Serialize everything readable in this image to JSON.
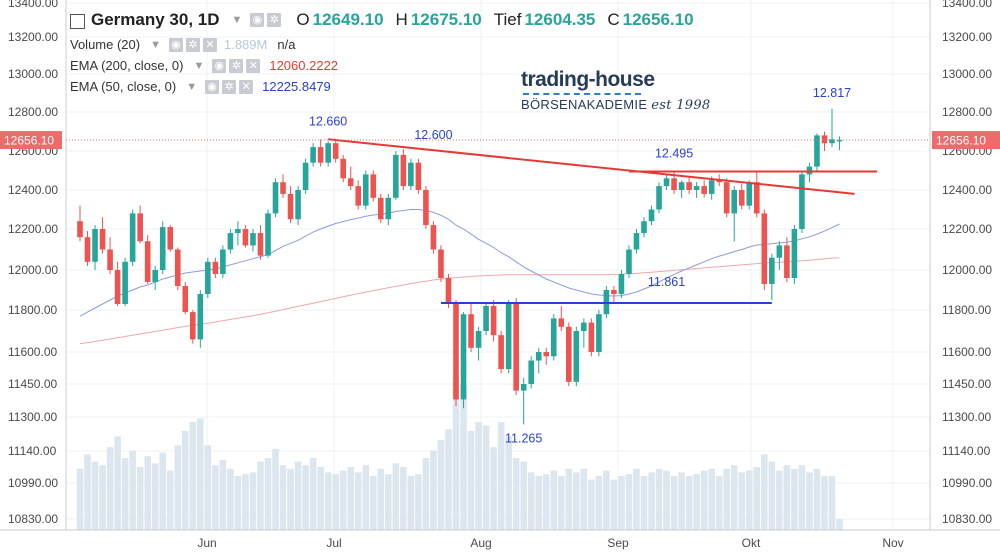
{
  "header": {
    "symbol": "Germany 30, 1D",
    "open_label": "O",
    "open": "12649.10",
    "high_label": "H",
    "high": "12675.10",
    "low_label": "Tief",
    "low": "12604.35",
    "close_label": "C",
    "close": "12656.10",
    "value_color": "#26a69a"
  },
  "indicators": [
    {
      "name": "Volume (20)",
      "value": "1.889M",
      "extra": "n/a",
      "value_color": "#b8c8d8"
    },
    {
      "name": "EMA (200, close, 0)",
      "value": "12060.2222",
      "value_color": "#e53935"
    },
    {
      "name": "EMA (50, close, 0)",
      "value": "12225.8479",
      "value_color": "#2940d0"
    }
  ],
  "logo": {
    "line1": "trading-house",
    "line2": "BÖRSENAKADEMIE",
    "line3": "est 1998"
  },
  "price_tag": "12656.10",
  "chart_data": {
    "type": "candlestick",
    "y_axis": {
      "ticks": [
        10830,
        10990,
        11140,
        11300,
        11450,
        11600,
        11800,
        12000,
        12200,
        12400,
        12600,
        12800,
        13000,
        13200,
        13400
      ],
      "tick_labels": [
        "10830.00",
        "10990.00",
        "11140.00",
        "11300.00",
        "11450.00",
        "11600.00",
        "11800.00",
        "12000.00",
        "12200.00",
        "12400.00",
        "12600.00",
        "12800.00",
        "13000.00",
        "13200.00",
        "13400.00"
      ]
    },
    "x_axis": {
      "labels": [
        "Jun",
        "Jul",
        "Aug",
        "Sep",
        "Okt",
        "Nov"
      ]
    },
    "grid": true,
    "up_color": "#26a69a",
    "down_color": "#ef5350",
    "volume_color": "#dce6ef",
    "candles": [
      [
        12240,
        12320,
        12140,
        12160,
        0.34
      ],
      [
        12160,
        12190,
        12020,
        12040,
        0.42
      ],
      [
        12040,
        12220,
        12000,
        12200,
        0.38
      ],
      [
        12200,
        12260,
        12080,
        12100,
        0.36
      ],
      [
        12100,
        12160,
        11980,
        12000,
        0.46
      ],
      [
        12000,
        12040,
        11820,
        11830,
        0.52
      ],
      [
        11830,
        12060,
        11820,
        12040,
        0.4
      ],
      [
        12040,
        12300,
        12020,
        12280,
        0.44
      ],
      [
        12280,
        12320,
        12130,
        12140,
        0.35
      ],
      [
        12140,
        12170,
        11930,
        11940,
        0.41
      ],
      [
        11940,
        12020,
        11900,
        12000,
        0.37
      ],
      [
        12000,
        12240,
        11980,
        12210,
        0.43
      ],
      [
        12210,
        12220,
        12090,
        12100,
        0.33
      ],
      [
        12100,
        12110,
        11900,
        11920,
        0.47
      ],
      [
        11920,
        11940,
        11780,
        11790,
        0.55
      ],
      [
        11790,
        11800,
        11640,
        11660,
        0.6
      ],
      [
        11660,
        11900,
        11620,
        11880,
        0.62
      ],
      [
        11880,
        12060,
        11860,
        12040,
        0.47
      ],
      [
        12040,
        12060,
        11960,
        11980,
        0.36
      ],
      [
        11980,
        12120,
        11960,
        12100,
        0.39
      ],
      [
        12100,
        12200,
        12080,
        12180,
        0.34
      ],
      [
        12180,
        12240,
        12120,
        12200,
        0.3
      ],
      [
        12200,
        12220,
        12110,
        12120,
        0.31
      ],
      [
        12120,
        12200,
        12090,
        12180,
        0.32
      ],
      [
        12180,
        12220,
        12050,
        12070,
        0.38
      ],
      [
        12070,
        12300,
        12060,
        12280,
        0.4
      ],
      [
        12280,
        12460,
        12260,
        12440,
        0.45
      ],
      [
        12440,
        12480,
        12360,
        12380,
        0.36
      ],
      [
        12380,
        12420,
        12230,
        12250,
        0.34
      ],
      [
        12250,
        12420,
        12220,
        12400,
        0.38
      ],
      [
        12400,
        12560,
        12380,
        12540,
        0.36
      ],
      [
        12540,
        12640,
        12520,
        12620,
        0.4
      ],
      [
        12620,
        12660,
        12520,
        12540,
        0.35
      ],
      [
        12540,
        12650,
        12520,
        12640,
        0.32
      ],
      [
        12640,
        12650,
        12540,
        12560,
        0.31
      ],
      [
        12560,
        12580,
        12440,
        12460,
        0.33
      ],
      [
        12460,
        12520,
        12400,
        12420,
        0.35
      ],
      [
        12420,
        12450,
        12300,
        12320,
        0.32
      ],
      [
        12320,
        12500,
        12300,
        12480,
        0.36
      ],
      [
        12480,
        12500,
        12340,
        12360,
        0.3
      ],
      [
        12360,
        12380,
        12230,
        12250,
        0.34
      ],
      [
        12250,
        12380,
        12220,
        12360,
        0.31
      ],
      [
        12360,
        12600,
        12350,
        12580,
        0.37
      ],
      [
        12580,
        12610,
        12400,
        12420,
        0.35
      ],
      [
        12420,
        12560,
        12400,
        12540,
        0.3
      ],
      [
        12540,
        12560,
        12380,
        12400,
        0.31
      ],
      [
        12400,
        12420,
        12200,
        12220,
        0.4
      ],
      [
        12220,
        12240,
        12080,
        12100,
        0.44
      ],
      [
        12100,
        12120,
        11940,
        11960,
        0.5
      ],
      [
        11960,
        11980,
        11810,
        11830,
        0.56
      ],
      [
        11830,
        11850,
        11350,
        11380,
        0.86
      ],
      [
        11380,
        11790,
        11340,
        11780,
        0.8
      ],
      [
        11780,
        11830,
        11600,
        11620,
        0.55
      ],
      [
        11620,
        11720,
        11560,
        11700,
        0.6
      ],
      [
        11700,
        11840,
        11680,
        11820,
        0.58
      ],
      [
        11820,
        11850,
        11650,
        11680,
        0.46
      ],
      [
        11680,
        11700,
        11500,
        11520,
        0.6
      ],
      [
        11520,
        11850,
        11500,
        11830,
        0.52
      ],
      [
        11830,
        11860,
        11400,
        11420,
        0.4
      ],
      [
        11420,
        11480,
        11265,
        11450,
        0.38
      ],
      [
        11450,
        11580,
        11430,
        11560,
        0.32
      ],
      [
        11560,
        11620,
        11500,
        11600,
        0.3
      ],
      [
        11600,
        11620,
        11540,
        11580,
        0.31
      ],
      [
        11580,
        11780,
        11560,
        11760,
        0.33
      ],
      [
        11760,
        11820,
        11700,
        11720,
        0.3
      ],
      [
        11720,
        11740,
        11440,
        11460,
        0.34
      ],
      [
        11460,
        11720,
        11440,
        11700,
        0.32
      ],
      [
        11700,
        11760,
        11620,
        11740,
        0.34
      ],
      [
        11740,
        11760,
        11580,
        11600,
        0.28
      ],
      [
        11600,
        11800,
        11580,
        11780,
        0.3
      ],
      [
        11780,
        11920,
        11760,
        11900,
        0.33
      ],
      [
        11900,
        11920,
        11840,
        11880,
        0.28
      ],
      [
        11880,
        12000,
        11860,
        11980,
        0.3
      ],
      [
        11980,
        12120,
        11960,
        12100,
        0.31
      ],
      [
        12100,
        12200,
        12080,
        12180,
        0.34
      ],
      [
        12180,
        12260,
        12160,
        12240,
        0.3
      ],
      [
        12240,
        12320,
        12220,
        12300,
        0.32
      ],
      [
        12300,
        12440,
        12280,
        12420,
        0.34
      ],
      [
        12420,
        12480,
        12400,
        12460,
        0.33
      ],
      [
        12460,
        12495,
        12380,
        12400,
        0.3
      ],
      [
        12400,
        12450,
        12360,
        12440,
        0.32
      ],
      [
        12440,
        12470,
        12380,
        12400,
        0.3
      ],
      [
        12400,
        12440,
        12360,
        12420,
        0.31
      ],
      [
        12420,
        12450,
        12360,
        12380,
        0.33
      ],
      [
        12380,
        12470,
        12350,
        12450,
        0.34
      ],
      [
        12450,
        12480,
        12420,
        12440,
        0.3
      ],
      [
        12440,
        12460,
        12260,
        12280,
        0.34
      ],
      [
        12280,
        12420,
        12140,
        12400,
        0.36
      ],
      [
        12400,
        12430,
        12300,
        12320,
        0.32
      ],
      [
        12320,
        12450,
        12300,
        12440,
        0.33
      ],
      [
        12440,
        12490,
        12260,
        12280,
        0.35
      ],
      [
        12280,
        12300,
        11900,
        11930,
        0.42
      ],
      [
        11930,
        12080,
        11850,
        12060,
        0.38
      ],
      [
        12060,
        12140,
        12000,
        12120,
        0.33
      ],
      [
        12120,
        12160,
        11940,
        11960,
        0.36
      ],
      [
        11960,
        12220,
        11930,
        12200,
        0.34
      ],
      [
        12200,
        12500,
        12180,
        12480,
        0.36
      ],
      [
        12480,
        12540,
        12440,
        12520,
        0.32
      ],
      [
        12520,
        12690,
        12500,
        12680,
        0.34
      ],
      [
        12680,
        12700,
        12600,
        12640,
        0.3
      ],
      [
        12640,
        12817,
        12620,
        12660,
        0.3
      ],
      [
        12649.1,
        12675.1,
        12604.35,
        12656.1,
        0.06
      ]
    ],
    "ema50": [
      11770,
      11790,
      11810,
      11830,
      11850,
      11870,
      11885,
      11900,
      11915,
      11925,
      11940,
      11955,
      11965,
      11975,
      11985,
      11990,
      11995,
      12000,
      12005,
      12015,
      12025,
      12035,
      12045,
      12055,
      12065,
      12075,
      12095,
      12115,
      12130,
      12145,
      12165,
      12185,
      12200,
      12215,
      12228,
      12238,
      12248,
      12256,
      12265,
      12272,
      12276,
      12280,
      12290,
      12295,
      12300,
      12300,
      12295,
      12285,
      12270,
      12250,
      12220,
      12200,
      12175,
      12150,
      12130,
      12110,
      12085,
      12065,
      12040,
      12015,
      11995,
      11975,
      11955,
      11940,
      11925,
      11910,
      11900,
      11890,
      11880,
      11875,
      11872,
      11870,
      11872,
      11880,
      11890,
      11905,
      11920,
      11940,
      11960,
      11978,
      11995,
      12010,
      12025,
      12040,
      12055,
      12068,
      12078,
      12090,
      12100,
      12112,
      12122,
      12125,
      12128,
      12132,
      12136,
      12142,
      12152,
      12162,
      12175,
      12190,
      12207,
      12225.85
    ],
    "ema200": [
      11640,
      11645,
      11650,
      11656,
      11662,
      11668,
      11674,
      11680,
      11686,
      11692,
      11698,
      11704,
      11710,
      11716,
      11722,
      11727,
      11732,
      11737,
      11743,
      11749,
      11755,
      11761,
      11767,
      11773,
      11780,
      11787,
      11794,
      11802,
      11810,
      11818,
      11826,
      11834,
      11842,
      11850,
      11858,
      11866,
      11874,
      11882,
      11890,
      11897,
      11904,
      11911,
      11918,
      11925,
      11932,
      11938,
      11944,
      11950,
      11955,
      11960,
      11962,
      11965,
      11968,
      11970,
      11972,
      11974,
      11975,
      11976,
      11976,
      11976,
      11976,
      11976,
      11976,
      11976,
      11976,
      11976,
      11976,
      11976,
      11976,
      11976,
      11977,
      11978,
      11979,
      11981,
      11983,
      11986,
      11989,
      11992,
      11995,
      11998,
      12001,
      12004,
      12007,
      12010,
      12013,
      12016,
      12019,
      12022,
      12025,
      12028,
      12031,
      12034,
      12036,
      12038,
      12040,
      12042,
      12045,
      12048,
      12051,
      12054,
      12057,
      12060.22
    ],
    "annotations": [
      {
        "text": "12.660",
        "value": 12660,
        "index": 33
      },
      {
        "text": "12.600",
        "value": 12600,
        "index": 47
      },
      {
        "text": "12.495",
        "value": 12495,
        "index": 79
      },
      {
        "text": "12.817",
        "value": 12817,
        "index": 100
      },
      {
        "text": "11.861",
        "value": 11861,
        "index": 78
      },
      {
        "text": "11.265",
        "value": 11265,
        "index": 59
      }
    ],
    "lines": [
      {
        "color": "#e53935",
        "from": [
          33,
          12660
        ],
        "to": [
          103,
          12380
        ]
      },
      {
        "color": "#e53935",
        "from": [
          73,
          12495
        ],
        "to": [
          106,
          12495
        ]
      },
      {
        "color": "#2940d0",
        "from": [
          48,
          11835
        ],
        "to": [
          92,
          11835
        ]
      }
    ]
  }
}
